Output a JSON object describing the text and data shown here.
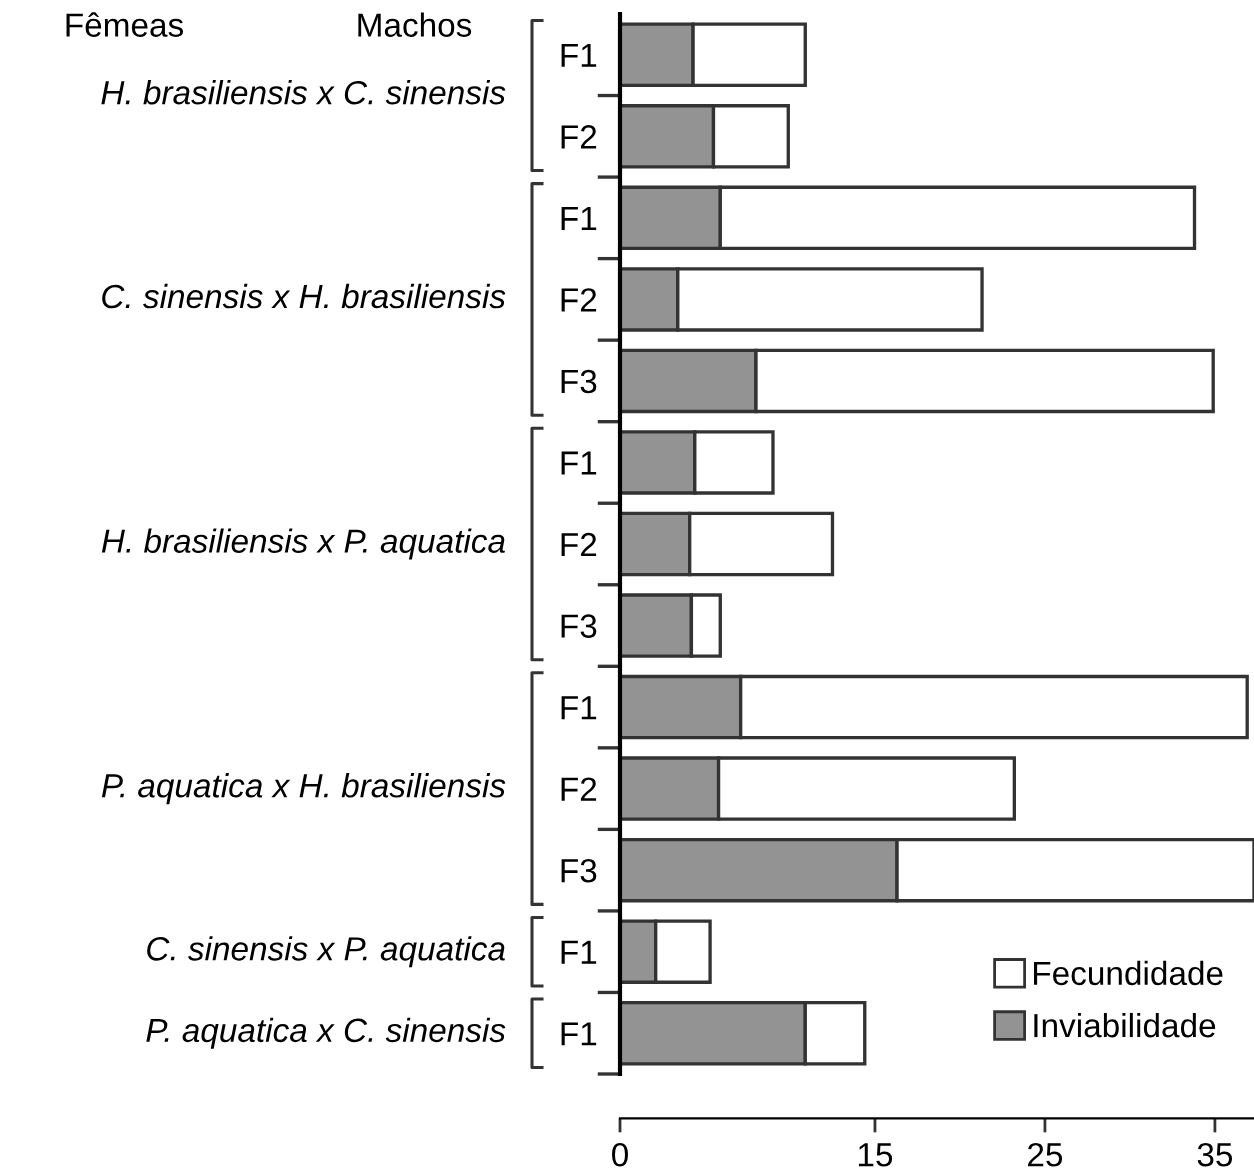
{
  "chart_data": {
    "type": "bar",
    "orientation": "horizontal",
    "stacked": true,
    "categories": [
      "F1",
      "F2",
      "F1",
      "F2",
      "F3",
      "F1",
      "F2",
      "F3",
      "F1",
      "F2",
      "F3",
      "F1",
      "F1"
    ],
    "series": [
      {
        "name": "Inviabilidade",
        "color": "#939393",
        "values": [
          4.3,
          5.5,
          5.9,
          3.4,
          8.0,
          4.4,
          4.1,
          4.2,
          7.1,
          5.8,
          16.3,
          2.1,
          10.9
        ]
      },
      {
        "name": "Fecundidade",
        "color": "#ffffff",
        "values": [
          6.6,
          4.4,
          27.9,
          17.9,
          26.9,
          4.6,
          8.4,
          1.7,
          29.8,
          17.4,
          21.0,
          3.2,
          3.5
        ]
      }
    ],
    "xlim": [
      0,
      37.3
    ],
    "xticks": [
      0,
      15,
      25,
      35
    ],
    "legend": "bottom right",
    "grid": false,
    "annotations": [
      "Fêmeas",
      "Machos",
      "H. brasiliensis x C. sinensis",
      "C. sinensis x H. brasiliensis",
      "H. brasiliensis x P. aquatica",
      "P. aquatica x H. brasiliensis",
      "C. sinensis x P. aquatica",
      "P. aquatica x C. sinensis"
    ]
  }
}
